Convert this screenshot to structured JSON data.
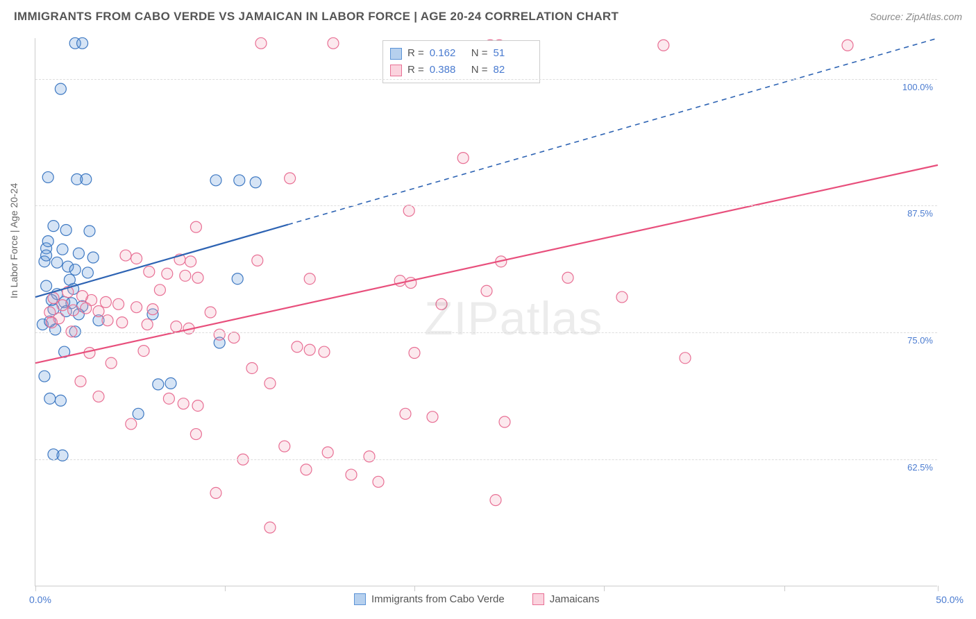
{
  "title": "IMMIGRANTS FROM CABO VERDE VS JAMAICAN IN LABOR FORCE | AGE 20-24 CORRELATION CHART",
  "source": "Source: ZipAtlas.com",
  "y_axis_title": "In Labor Force | Age 20-24",
  "watermark": "ZIPatlas",
  "chart": {
    "type": "scatter",
    "xlim": [
      0,
      50
    ],
    "ylim": [
      50,
      104
    ],
    "x_ticks": [
      0,
      10.5,
      21,
      31.5,
      41.5,
      50
    ],
    "x_tick_labels_left": "0.0%",
    "x_tick_labels_right": "50.0%",
    "y_grid": [
      62.5,
      75.0,
      87.5,
      100.0
    ],
    "y_grid_labels": [
      "62.5%",
      "75.0%",
      "87.5%",
      "100.0%"
    ],
    "background_color": "#ffffff",
    "grid_color": "#dddddd",
    "axis_color": "#cccccc",
    "label_color": "#4a7bd0",
    "marker_radius": 8,
    "marker_fill_opacity": 0.25,
    "marker_stroke_width": 1.2,
    "line_width": 2.2
  },
  "series": [
    {
      "name": "Immigrants from Cabo Verde",
      "color": "#5b93d6",
      "stroke": "#3d78c2",
      "line_color": "#2d63b3",
      "R": "0.162",
      "N": "51",
      "trend": {
        "x1": 0,
        "y1": 78.5,
        "x2": 50,
        "y2": 104.0,
        "solid_until_x": 14
      },
      "points": [
        [
          2.2,
          103.5
        ],
        [
          2.6,
          103.5
        ],
        [
          1.4,
          99.0
        ],
        [
          0.7,
          90.3
        ],
        [
          2.3,
          90.1
        ],
        [
          2.8,
          90.1
        ],
        [
          10.0,
          90.0
        ],
        [
          11.3,
          90.0
        ],
        [
          12.2,
          89.8
        ],
        [
          1.0,
          85.5
        ],
        [
          1.7,
          85.1
        ],
        [
          3.0,
          85.0
        ],
        [
          0.6,
          83.3
        ],
        [
          1.5,
          83.2
        ],
        [
          2.4,
          82.8
        ],
        [
          0.5,
          82.0
        ],
        [
          1.2,
          81.9
        ],
        [
          1.8,
          81.5
        ],
        [
          2.2,
          81.2
        ],
        [
          2.9,
          80.9
        ],
        [
          11.2,
          80.3
        ],
        [
          0.6,
          79.6
        ],
        [
          1.2,
          78.8
        ],
        [
          0.9,
          78.2
        ],
        [
          1.6,
          78.0
        ],
        [
          2.0,
          77.9
        ],
        [
          2.6,
          77.6
        ],
        [
          1.0,
          77.3
        ],
        [
          1.7,
          77.1
        ],
        [
          2.4,
          76.8
        ],
        [
          6.5,
          76.8
        ],
        [
          0.4,
          75.8
        ],
        [
          1.1,
          75.3
        ],
        [
          2.2,
          75.1
        ],
        [
          10.2,
          74.0
        ],
        [
          1.6,
          73.1
        ],
        [
          0.5,
          70.7
        ],
        [
          6.8,
          69.9
        ],
        [
          7.5,
          70.0
        ],
        [
          0.8,
          68.5
        ],
        [
          1.4,
          68.3
        ],
        [
          5.7,
          67.0
        ],
        [
          1.0,
          63.0
        ],
        [
          1.5,
          62.9
        ],
        [
          0.6,
          82.6
        ],
        [
          2.1,
          79.3
        ],
        [
          0.8,
          76.1
        ],
        [
          3.2,
          82.4
        ],
        [
          1.9,
          80.2
        ],
        [
          0.7,
          84.0
        ],
        [
          3.5,
          76.2
        ]
      ]
    },
    {
      "name": "Jamaicans",
      "color": "#f5a7bd",
      "stroke": "#e86f94",
      "line_color": "#e84f7c",
      "R": "0.388",
      "N": "82",
      "trend": {
        "x1": 0,
        "y1": 72.0,
        "x2": 50,
        "y2": 91.5,
        "solid_until_x": 50
      },
      "points": [
        [
          12.5,
          103.5
        ],
        [
          16.5,
          103.5
        ],
        [
          25.2,
          103.3
        ],
        [
          25.7,
          103.3
        ],
        [
          34.8,
          103.3
        ],
        [
          45.0,
          103.3
        ],
        [
          23.7,
          92.2
        ],
        [
          14.1,
          90.2
        ],
        [
          8.9,
          85.4
        ],
        [
          20.7,
          87.0
        ],
        [
          5.0,
          82.6
        ],
        [
          5.6,
          82.3
        ],
        [
          8.0,
          82.2
        ],
        [
          8.6,
          82.0
        ],
        [
          12.3,
          82.1
        ],
        [
          25.8,
          82.0
        ],
        [
          6.3,
          81.0
        ],
        [
          7.3,
          80.8
        ],
        [
          8.3,
          80.6
        ],
        [
          9.0,
          80.4
        ],
        [
          15.2,
          80.3
        ],
        [
          20.2,
          80.1
        ],
        [
          20.8,
          79.9
        ],
        [
          25.0,
          79.1
        ],
        [
          3.1,
          78.2
        ],
        [
          3.9,
          78.0
        ],
        [
          4.6,
          77.8
        ],
        [
          5.6,
          77.5
        ],
        [
          6.5,
          77.3
        ],
        [
          4.0,
          76.2
        ],
        [
          4.8,
          76.0
        ],
        [
          6.2,
          75.8
        ],
        [
          7.8,
          75.6
        ],
        [
          8.5,
          75.4
        ],
        [
          10.2,
          74.8
        ],
        [
          11.0,
          74.5
        ],
        [
          14.5,
          73.6
        ],
        [
          15.2,
          73.3
        ],
        [
          16.0,
          73.1
        ],
        [
          21.0,
          73.0
        ],
        [
          2.8,
          77.4
        ],
        [
          3.5,
          77.1
        ],
        [
          1.5,
          77.7
        ],
        [
          2.1,
          77.2
        ],
        [
          1.0,
          78.4
        ],
        [
          0.8,
          77.0
        ],
        [
          6.0,
          73.2
        ],
        [
          12.0,
          71.5
        ],
        [
          13.0,
          70.0
        ],
        [
          2.5,
          70.2
        ],
        [
          7.4,
          68.5
        ],
        [
          8.2,
          68.0
        ],
        [
          9.0,
          67.8
        ],
        [
          3.5,
          68.7
        ],
        [
          20.5,
          67.0
        ],
        [
          22.0,
          66.7
        ],
        [
          5.3,
          66.0
        ],
        [
          8.9,
          65.0
        ],
        [
          26.0,
          66.2
        ],
        [
          13.8,
          63.8
        ],
        [
          16.2,
          63.2
        ],
        [
          18.5,
          62.8
        ],
        [
          11.5,
          62.5
        ],
        [
          15.0,
          61.5
        ],
        [
          17.5,
          61.0
        ],
        [
          19.0,
          60.3
        ],
        [
          10.0,
          59.2
        ],
        [
          25.5,
          58.5
        ],
        [
          13.0,
          55.8
        ],
        [
          1.3,
          76.4
        ],
        [
          2.0,
          75.1
        ],
        [
          1.8,
          79.0
        ],
        [
          2.6,
          78.6
        ],
        [
          0.9,
          76.0
        ],
        [
          29.5,
          80.4
        ],
        [
          36.0,
          72.5
        ],
        [
          4.2,
          72.0
        ],
        [
          3.0,
          73.0
        ],
        [
          9.7,
          77.0
        ],
        [
          6.9,
          79.2
        ],
        [
          22.5,
          77.8
        ],
        [
          32.5,
          78.5
        ]
      ]
    }
  ],
  "legend_top": {
    "rows": [
      {
        "swatch_fill": "#b6d0ee",
        "swatch_stroke": "#5b93d6",
        "r_label": "R =",
        "r_val": "0.162",
        "n_label": "N =",
        "n_val": "51"
      },
      {
        "swatch_fill": "#fbd3de",
        "swatch_stroke": "#e86f94",
        "r_label": "R =",
        "r_val": "0.388",
        "n_label": "N =",
        "n_val": "82"
      }
    ]
  },
  "legend_bottom": {
    "items": [
      {
        "swatch_fill": "#b6d0ee",
        "swatch_stroke": "#5b93d6",
        "label": "Immigrants from Cabo Verde"
      },
      {
        "swatch_fill": "#fbd3de",
        "swatch_stroke": "#e86f94",
        "label": "Jamaicans"
      }
    ]
  }
}
